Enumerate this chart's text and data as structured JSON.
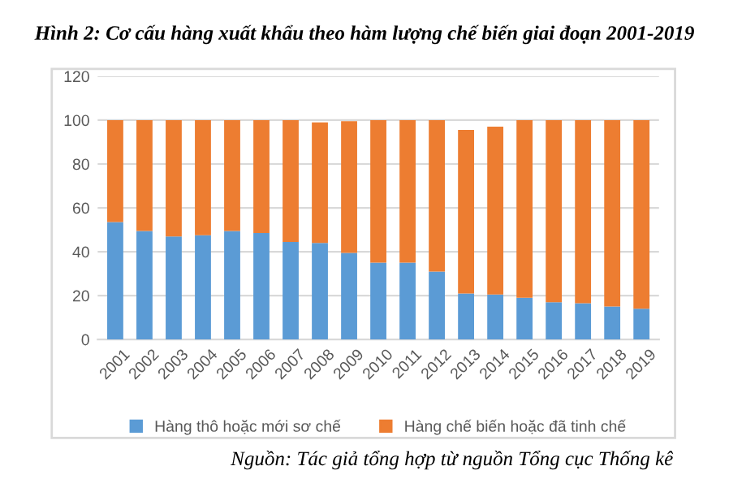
{
  "chart_data": {
    "type": "bar",
    "stacked": true,
    "title": "Hình 2: Cơ cấu hàng xuất khẩu theo hàm lượng chế biến giai đoạn 2001-2019",
    "categories": [
      "2001",
      "2002",
      "2003",
      "2004",
      "2005",
      "2006",
      "2007",
      "2008",
      "2009",
      "2010",
      "2011",
      "2012",
      "2013",
      "2014",
      "2015",
      "2016",
      "2017",
      "2018",
      "2019"
    ],
    "series": [
      {
        "name": "Hàng thô hoặc mới sơ chế",
        "color": "#5b9bd5",
        "values": [
          53.5,
          49.5,
          47,
          47.5,
          49.5,
          48.5,
          44.5,
          44,
          39.5,
          35,
          35,
          31,
          21,
          20.5,
          19,
          17,
          16.5,
          15,
          14
        ]
      },
      {
        "name": "Hàng chế biến hoặc đã tinh chế",
        "color": "#ed7d31",
        "values": [
          46.5,
          50.5,
          53,
          52.5,
          50.5,
          51.5,
          55.5,
          55,
          60,
          65,
          65,
          69,
          74.5,
          76.5,
          81,
          83,
          83.5,
          85,
          86
        ]
      }
    ],
    "ylim": [
      0,
      120
    ],
    "yticks": [
      0,
      20,
      40,
      60,
      80,
      100,
      120
    ],
    "grid": "y",
    "legend": "bottom",
    "annotations": [
      "Nguồn: Tác giả tổng hợp từ nguồn Tổng cục Thống kê"
    ]
  }
}
